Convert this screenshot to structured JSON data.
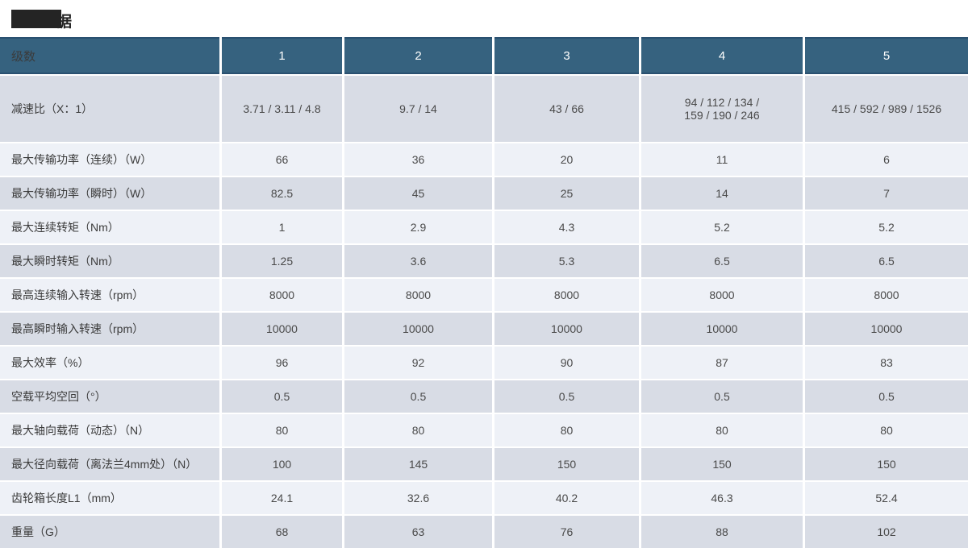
{
  "title": {
    "visible_text": "据",
    "note_redacted_area": true
  },
  "colors": {
    "header_bg": "#36627f",
    "header_border": "#2a5070",
    "row_dark": "#d8dce5",
    "row_light": "#eef1f7",
    "header_text": "#ffffff",
    "body_text": "#4a4a4a",
    "redaction_box": "#242424"
  },
  "table": {
    "header": {
      "label": "级数",
      "columns": [
        "1",
        "2",
        "3",
        "4",
        "5"
      ]
    },
    "rows": [
      {
        "label": "减速比（X：1）",
        "values": [
          "3.71 / 3.11 / 4.8",
          "9.7 / 14",
          "43 / 66",
          "94 / 112 / 134 /\n159 / 190 / 246",
          "415 / 592 / 989 / 1526"
        ]
      },
      {
        "label": "最大传输功率（连续）（W）",
        "values": [
          "66",
          "36",
          "20",
          "11",
          "6"
        ]
      },
      {
        "label": "最大传输功率（瞬时）（W）",
        "values": [
          "82.5",
          "45",
          "25",
          "14",
          "7"
        ]
      },
      {
        "label": "最大连续转矩（Nm）",
        "values": [
          "1",
          "2.9",
          "4.3",
          "5.2",
          "5.2"
        ]
      },
      {
        "label": "最大瞬时转矩（Nm）",
        "values": [
          "1.25",
          "3.6",
          "5.3",
          "6.5",
          "6.5"
        ]
      },
      {
        "label": "最高连续输入转速（rpm）",
        "values": [
          "8000",
          "8000",
          "8000",
          "8000",
          "8000"
        ]
      },
      {
        "label": "最高瞬时输入转速（rpm）",
        "values": [
          "10000",
          "10000",
          "10000",
          "10000",
          "10000"
        ]
      },
      {
        "label": "最大效率（%）",
        "values": [
          "96",
          "92",
          "90",
          "87",
          "83"
        ]
      },
      {
        "label": "空载平均空回（°）",
        "values": [
          "0.5",
          "0.5",
          "0.5",
          "0.5",
          "0.5"
        ]
      },
      {
        "label": "最大轴向载荷（动态）（N）",
        "values": [
          "80",
          "80",
          "80",
          "80",
          "80"
        ]
      },
      {
        "label": "最大径向载荷（离法兰4mm处）（N）",
        "values": [
          "100",
          "145",
          "150",
          "150",
          "150"
        ]
      },
      {
        "label": "齿轮箱长度L1（mm）",
        "values": [
          "24.1",
          "32.6",
          "40.2",
          "46.3",
          "52.4"
        ]
      },
      {
        "label": "重量（G）",
        "values": [
          "68",
          "63",
          "76",
          "88",
          "102"
        ]
      }
    ]
  }
}
